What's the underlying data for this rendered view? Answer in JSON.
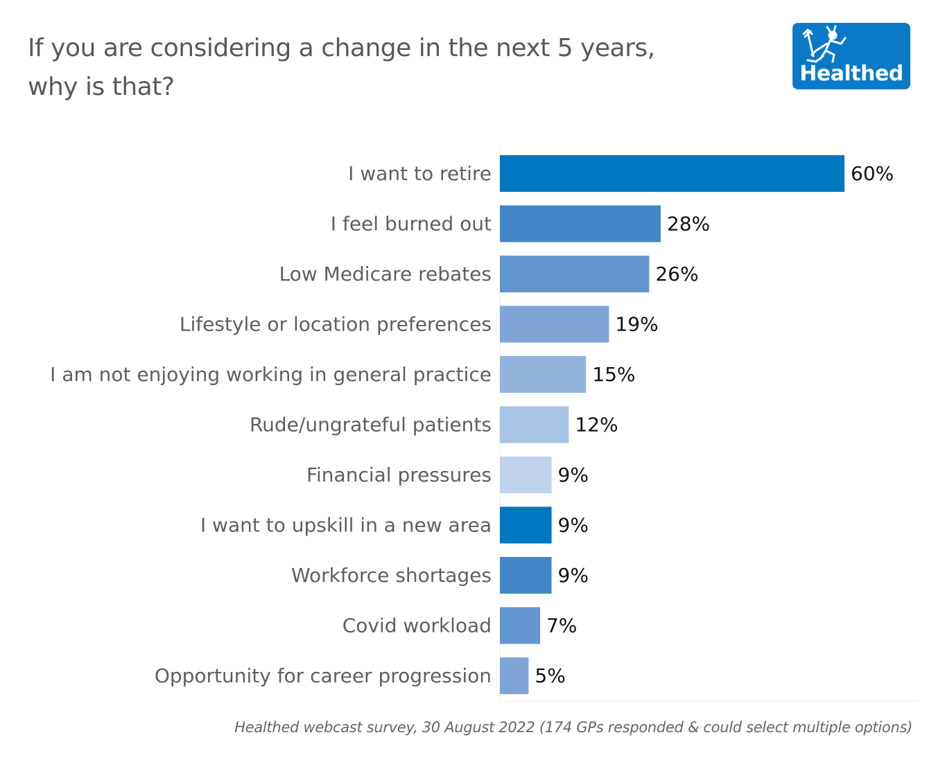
{
  "header": {
    "title_line1": "If you are considering a change in the next 5 years,",
    "title_line2": "why is that?"
  },
  "logo": {
    "text": "Healthed",
    "icon": "running-messenger-figure-icon",
    "background_color": "#0a7ac8"
  },
  "footnote": "Healthed webcast survey, 30 August 2022 (174 GPs responded & could select multiple options)",
  "chart_data": {
    "type": "bar",
    "orientation": "horizontal",
    "title": "If you are considering a change in the next 5 years, why is that?",
    "xlabel": "",
    "ylabel": "",
    "xlim": [
      0,
      73
    ],
    "grid": false,
    "legend": "none",
    "unit": "%",
    "categories": [
      "I want to retire",
      "I feel burned out",
      "Low Medicare rebates",
      "Lifestyle or location preferences",
      "I am not enjoying working in general practice",
      "Rude/ungrateful patients",
      "Financial pressures",
      "I want to upskill in a new area",
      "Workforce shortages",
      "Covid workload",
      "Opportunity for career progression"
    ],
    "values": [
      60,
      28,
      26,
      19,
      15,
      12,
      9,
      9,
      9,
      7,
      5
    ],
    "value_labels": [
      "60%",
      "28%",
      "26%",
      "19%",
      "15%",
      "12%",
      "9%",
      "9%",
      "9%",
      "7%",
      "5%"
    ],
    "colors": [
      "#0077c0",
      "#4087c8",
      "#6396d0",
      "#7ea5d6",
      "#93b3dc",
      "#a9c3e4",
      "#c1d3eb",
      "#0077c0",
      "#4087c8",
      "#6396d0",
      "#7ea5d6"
    ],
    "axis_line_color": "#ececec"
  }
}
